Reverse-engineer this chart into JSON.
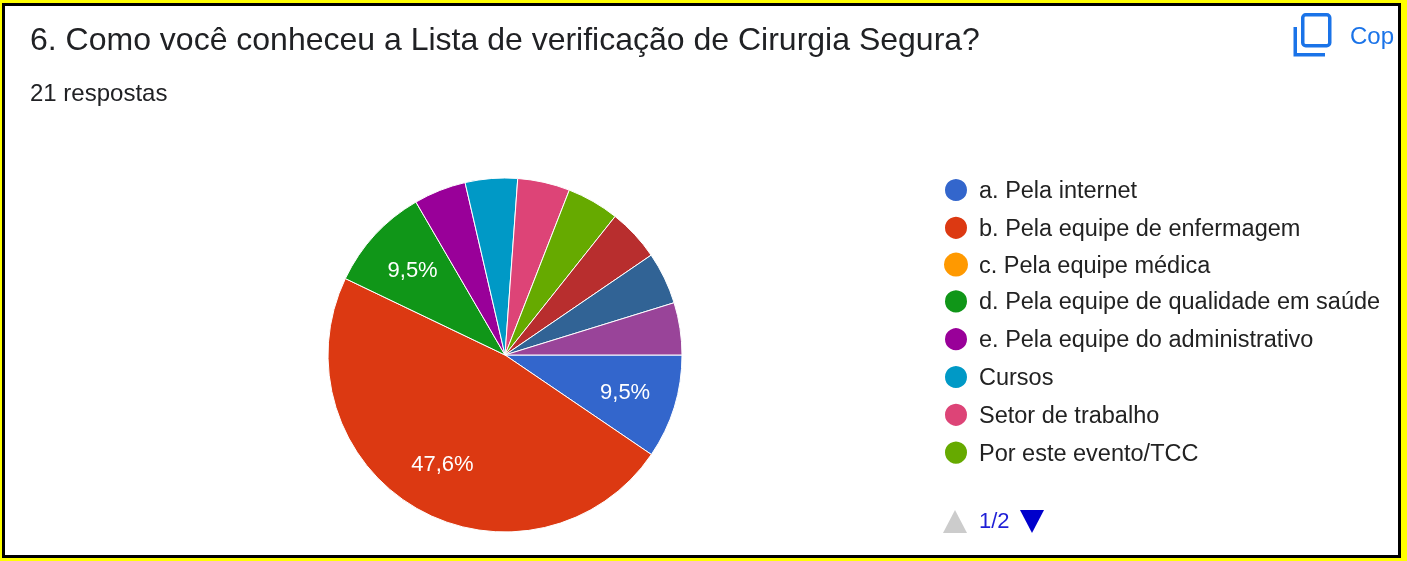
{
  "chart_data": {
    "type": "pie",
    "title": "6. Como você conheceu a Lista de verificação de Cirurgia Segura?",
    "subtitle": "21 respostas",
    "categories": [
      "a. Pela internet",
      "b. Pela equipe de enfermagem",
      "c. Pela equipe médica",
      "d. Pela equipe de qualidade em saúde",
      "e. Pela equipe do administrativo",
      "Cursos",
      "Setor de trabalho",
      "Por este evento/TCC",
      null,
      null,
      null
    ],
    "values": [
      9.5,
      47.6,
      0,
      9.5,
      4.77,
      4.77,
      4.77,
      4.77,
      4.77,
      4.77,
      4.77
    ],
    "colors": [
      "#3366cc",
      "#dc3912",
      "#ff9900",
      "#109618",
      "#990099",
      "#0099c6",
      "#dd4477",
      "#66aa00",
      "#b82e2e",
      "#316395",
      "#994499"
    ],
    "value_labels": [
      "9,5%",
      "47,6%",
      null,
      "9,5%",
      null,
      null,
      null,
      null,
      null,
      null,
      null
    ],
    "legend": "right",
    "annotations": [
      "Cop",
      "1/2"
    ]
  }
}
